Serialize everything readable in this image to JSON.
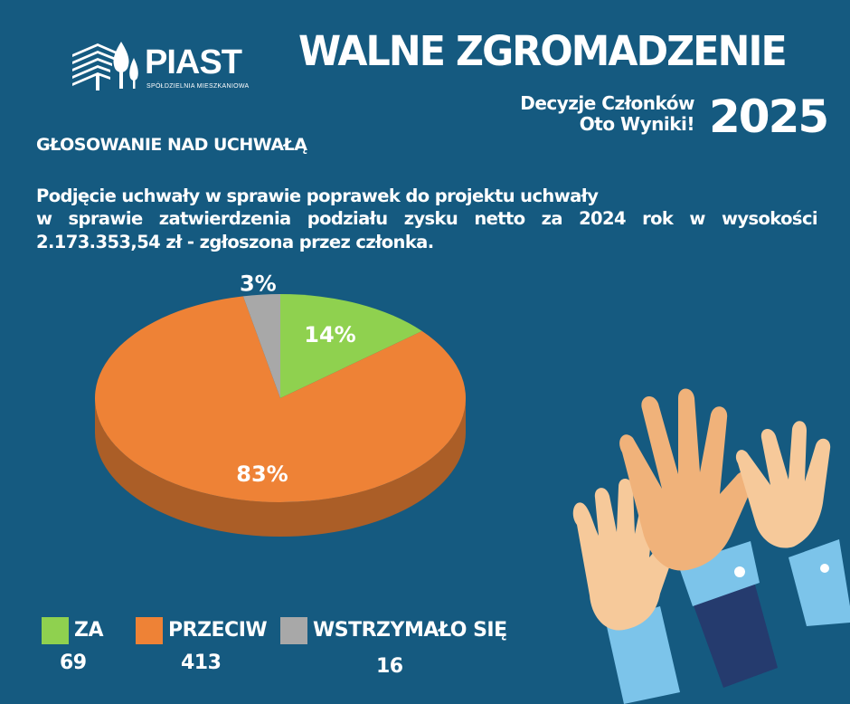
{
  "header": {
    "logo_name": "PIAST",
    "logo_sub": "SPÓŁDZIELNIA MIESZKANIOWA",
    "title": "WALNE ZGROMADZENIE",
    "subtitle_line1": "Decyzje Członków",
    "subtitle_line2": "Oto Wyniki!",
    "year": "2025"
  },
  "section": {
    "title": "GŁOSOWANIE NAD UCHWAŁĄ",
    "question_line1": "Podjęcie uchwały w sprawie poprawek do projektu uchwały",
    "question_line2": "w sprawie zatwierdzenia podziału zysku netto za 2024 rok w wysokości",
    "question_line3": "2.173.353,54 zł - zgłoszona przez członka."
  },
  "chart_data": {
    "type": "pie",
    "slices": [
      {
        "name": "ZA",
        "value": 69,
        "percent_label": "14%",
        "color": "#8fd14f"
      },
      {
        "name": "PRZECIW",
        "value": 413,
        "percent_label": "83%",
        "color": "#ee8236"
      },
      {
        "name": "WSTRZYMAŁO SIĘ",
        "value": 16,
        "percent_label": "3%",
        "color": "#a8a8a8"
      }
    ],
    "legend_placement": "bottom-left"
  },
  "legend": [
    {
      "label": "ZA",
      "value": "69",
      "color": "#8fd14f"
    },
    {
      "label": "PRZECIW",
      "value": "413",
      "color": "#ee8236"
    },
    {
      "label": "WSTRZYMAŁO SIĘ",
      "value": "16",
      "color": "#a8a8a8"
    }
  ],
  "colors": {
    "background": "#155a80",
    "text": "#ffffff"
  }
}
